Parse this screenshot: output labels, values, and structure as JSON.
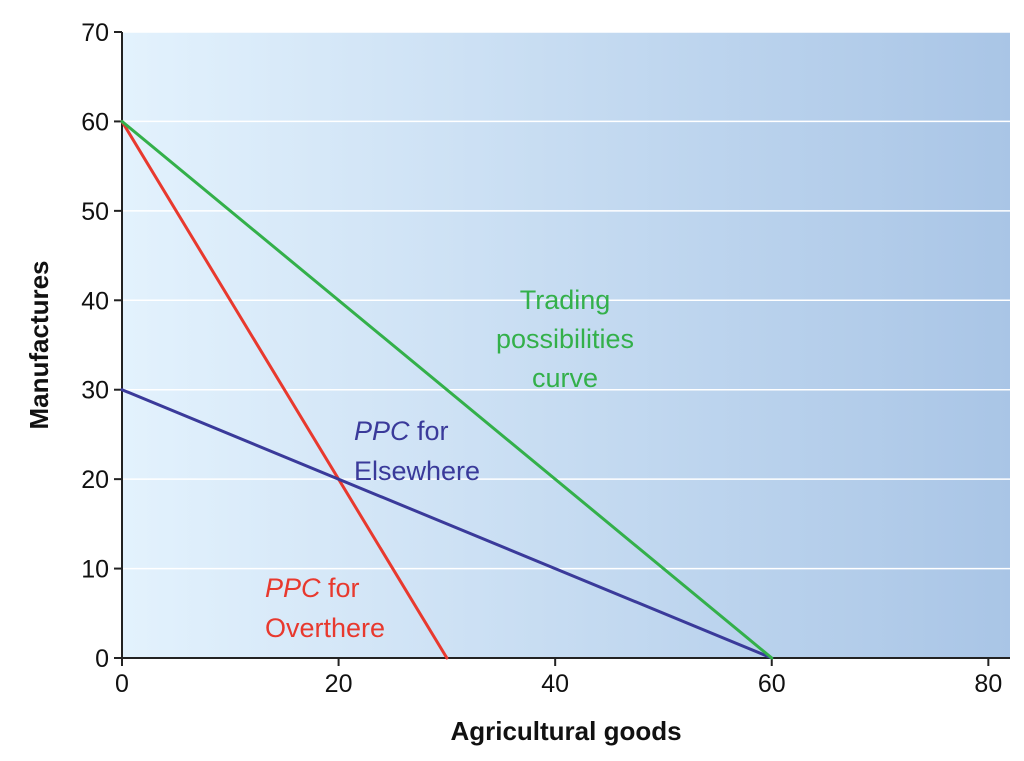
{
  "chart_data": {
    "type": "line",
    "title": "",
    "xlabel": "Agricultural goods",
    "ylabel": "Manufactures",
    "xlim": [
      0,
      82
    ],
    "ylim": [
      0,
      70
    ],
    "x_ticks": [
      0,
      20,
      40,
      60,
      80
    ],
    "y_ticks": [
      0,
      10,
      20,
      30,
      40,
      50,
      60,
      70
    ],
    "grid": "horizontal",
    "legend": "none",
    "series": [
      {
        "key": "overthere",
        "color": "#e8392e",
        "points": [
          [
            0,
            60
          ],
          [
            30,
            0
          ]
        ],
        "label_lines": [
          {
            "italic": "PPC",
            "text": " for"
          },
          {
            "italic": "",
            "text": "Overthere"
          }
        ]
      },
      {
        "key": "elsewhere",
        "color": "#3a3a9a",
        "points": [
          [
            0,
            30
          ],
          [
            60,
            0
          ]
        ],
        "label_lines": [
          {
            "italic": "PPC",
            "text": " for"
          },
          {
            "italic": "",
            "text": "Elsewhere"
          }
        ]
      },
      {
        "key": "trading",
        "color": "#33b04a",
        "points": [
          [
            0,
            60
          ],
          [
            60,
            0
          ]
        ],
        "label_lines": [
          {
            "italic": "",
            "text": "Trading"
          },
          {
            "italic": "",
            "text": "possibilities"
          },
          {
            "italic": "",
            "text": "curve"
          }
        ]
      }
    ],
    "colors": {
      "background_start": "#e3f2fd",
      "background_end": "#a9c5e6",
      "grid": "#ffffff",
      "axis": "#222222"
    }
  }
}
